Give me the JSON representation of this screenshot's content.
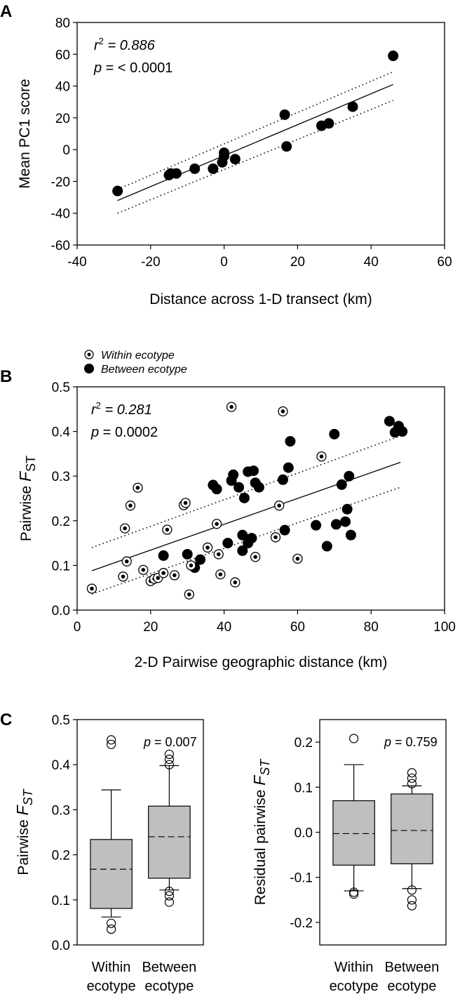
{
  "chart_data": [
    {
      "panel_label": "A",
      "type": "scatter",
      "xlabel": "Distance across 1-D transect (km)",
      "ylabel": "Mean PC1 score",
      "xlim": [
        -40,
        60
      ],
      "ylim": [
        -60,
        80
      ],
      "xticks": [
        -40,
        -20,
        0,
        20,
        40,
        60
      ],
      "yticks": [
        -60,
        -40,
        -20,
        0,
        20,
        40,
        60,
        80
      ],
      "stat_r2_label": "r",
      "stat_r2_sup": "2",
      "stat_r2_value": "= 0.886",
      "stat_p_label": "p",
      "stat_p_value": " = < 0.0001",
      "points": [
        [
          -29,
          -26
        ],
        [
          -15,
          -16
        ],
        [
          -14.5,
          -15
        ],
        [
          -13,
          -15
        ],
        [
          -8,
          -12
        ],
        [
          -3,
          -12
        ],
        [
          -0.5,
          -8
        ],
        [
          0,
          -4
        ],
        [
          0,
          -2
        ],
        [
          3,
          -6
        ],
        [
          16.5,
          22
        ],
        [
          17,
          2
        ],
        [
          26.5,
          15
        ],
        [
          28.5,
          16.5
        ],
        [
          35,
          27
        ],
        [
          46,
          59
        ]
      ],
      "fit": [
        [
          -29,
          -32
        ],
        [
          46,
          41
        ]
      ],
      "ci_upper": [
        [
          -29,
          -25
        ],
        [
          46,
          49
        ]
      ],
      "ci_lower": [
        [
          -29,
          -40
        ],
        [
          46,
          31
        ]
      ]
    },
    {
      "panel_label": "B",
      "type": "scatter",
      "xlabel": "2-D Pairwise geographic distance (km)",
      "ylabel_main": "Pairwise ",
      "ylabel_f": "F",
      "ylabel_sub": "ST",
      "xlim": [
        0,
        100
      ],
      "ylim": [
        0.0,
        0.5
      ],
      "xticks": [
        0,
        20,
        40,
        60,
        80,
        100
      ],
      "yticks": [
        0.0,
        0.1,
        0.2,
        0.3,
        0.4,
        0.5
      ],
      "stat_r2_label": "r",
      "stat_r2_sup": "2",
      "stat_r2_value": "= 0.281",
      "stat_p_label": "p",
      "stat_p_value": " = 0.0002",
      "legend": [
        {
          "name": "Within ecotype",
          "marker": "circle-dot"
        },
        {
          "name": "Between ecotype",
          "marker": "filled"
        }
      ],
      "series": [
        {
          "name": "Within ecotype",
          "points": [
            [
              4,
              0.048
            ],
            [
              12.5,
              0.075
            ],
            [
              13,
              0.183
            ],
            [
              13.5,
              0.109
            ],
            [
              14.5,
              0.234
            ],
            [
              16.5,
              0.274
            ],
            [
              18,
              0.09
            ],
            [
              20,
              0.065
            ],
            [
              21,
              0.07
            ],
            [
              22,
              0.072
            ],
            [
              23.5,
              0.083
            ],
            [
              24.5,
              0.18
            ],
            [
              26.5,
              0.078
            ],
            [
              29,
              0.235
            ],
            [
              29.5,
              0.24
            ],
            [
              30.5,
              0.035
            ],
            [
              31,
              0.1
            ],
            [
              35.5,
              0.14
            ],
            [
              38,
              0.193
            ],
            [
              38.5,
              0.125
            ],
            [
              39,
              0.08
            ],
            [
              42,
              0.455
            ],
            [
              43,
              0.062
            ],
            [
              48.5,
              0.119
            ],
            [
              54,
              0.163
            ],
            [
              55,
              0.234
            ],
            [
              56,
              0.445
            ],
            [
              60,
              0.115
            ],
            [
              66.5,
              0.344
            ]
          ]
        },
        {
          "name": "Between ecotype",
          "points": [
            [
              23.5,
              0.122
            ],
            [
              30,
              0.125
            ],
            [
              32,
              0.095
            ],
            [
              33.5,
              0.113
            ],
            [
              37,
              0.28
            ],
            [
              38,
              0.271
            ],
            [
              41,
              0.15
            ],
            [
              42,
              0.29
            ],
            [
              42.5,
              0.303
            ],
            [
              44,
              0.275
            ],
            [
              45,
              0.133
            ],
            [
              45,
              0.168
            ],
            [
              45.5,
              0.251
            ],
            [
              46.5,
              0.31
            ],
            [
              46.5,
              0.15
            ],
            [
              47.5,
              0.161
            ],
            [
              48,
              0.312
            ],
            [
              48.5,
              0.285
            ],
            [
              49.5,
              0.275
            ],
            [
              56,
              0.292
            ],
            [
              56.5,
              0.179
            ],
            [
              57.5,
              0.319
            ],
            [
              58,
              0.378
            ],
            [
              65,
              0.19
            ],
            [
              68,
              0.143
            ],
            [
              70,
              0.394
            ],
            [
              70.5,
              0.192
            ],
            [
              72,
              0.281
            ],
            [
              73,
              0.198
            ],
            [
              73.5,
              0.226
            ],
            [
              74,
              0.3
            ],
            [
              74.5,
              0.168
            ],
            [
              85,
              0.423
            ],
            [
              86.5,
              0.398
            ],
            [
              87.5,
              0.412
            ],
            [
              88.5,
              0.4
            ]
          ]
        }
      ],
      "fit": [
        [
          4,
          0.088
        ],
        [
          88,
          0.331
        ]
      ],
      "ci_upper": [
        [
          4,
          0.14
        ],
        [
          88,
          0.39
        ]
      ],
      "ci_lower": [
        [
          4,
          0.036
        ],
        [
          88,
          0.275
        ]
      ]
    },
    {
      "panel_label": "C",
      "type": "box",
      "ylabel_main": "Pairwise ",
      "ylabel_f": "F",
      "ylabel_sub": "ST",
      "ylim": [
        0.0,
        0.5
      ],
      "yticks": [
        0.0,
        0.1,
        0.2,
        0.3,
        0.4,
        0.5
      ],
      "stat_p_label": "p",
      "stat_p_value": " = 0.007",
      "categories": [
        {
          "line1": "Within",
          "line2": "ecotype"
        },
        {
          "line1": "Between",
          "line2": "ecotype"
        }
      ],
      "boxes": [
        {
          "q1": 0.081,
          "median": 0.168,
          "q3": 0.234,
          "whisker_low": 0.062,
          "whisker_high": 0.344,
          "outliers": [
            0.455,
            0.445,
            0.048,
            0.035
          ]
        },
        {
          "q1": 0.148,
          "median": 0.24,
          "q3": 0.308,
          "whisker_low": 0.122,
          "whisker_high": 0.398,
          "outliers": [
            0.423,
            0.412,
            0.4,
            0.119,
            0.109,
            0.095
          ]
        }
      ]
    },
    {
      "type": "box",
      "ylabel_main": "Residual pairwise ",
      "ylabel_f": "F",
      "ylabel_sub": "ST",
      "ylim": [
        -0.25,
        0.25
      ],
      "yticks": [
        -0.2,
        -0.1,
        0.0,
        0.1,
        0.2
      ],
      "stat_p_label": "p",
      "stat_p_value": " = 0.759",
      "categories": [
        {
          "line1": "Within",
          "line2": "ecotype"
        },
        {
          "line1": "Between",
          "line2": "ecotype"
        }
      ],
      "boxes": [
        {
          "q1": -0.073,
          "median": -0.003,
          "q3": 0.07,
          "whisker_low": -0.13,
          "whisker_high": 0.15,
          "outliers": [
            0.208,
            -0.133,
            -0.137
          ]
        },
        {
          "q1": -0.07,
          "median": 0.004,
          "q3": 0.085,
          "whisker_low": -0.125,
          "whisker_high": 0.103,
          "outliers": [
            0.132,
            0.12,
            0.108,
            -0.128,
            -0.15,
            -0.163
          ]
        }
      ]
    }
  ]
}
